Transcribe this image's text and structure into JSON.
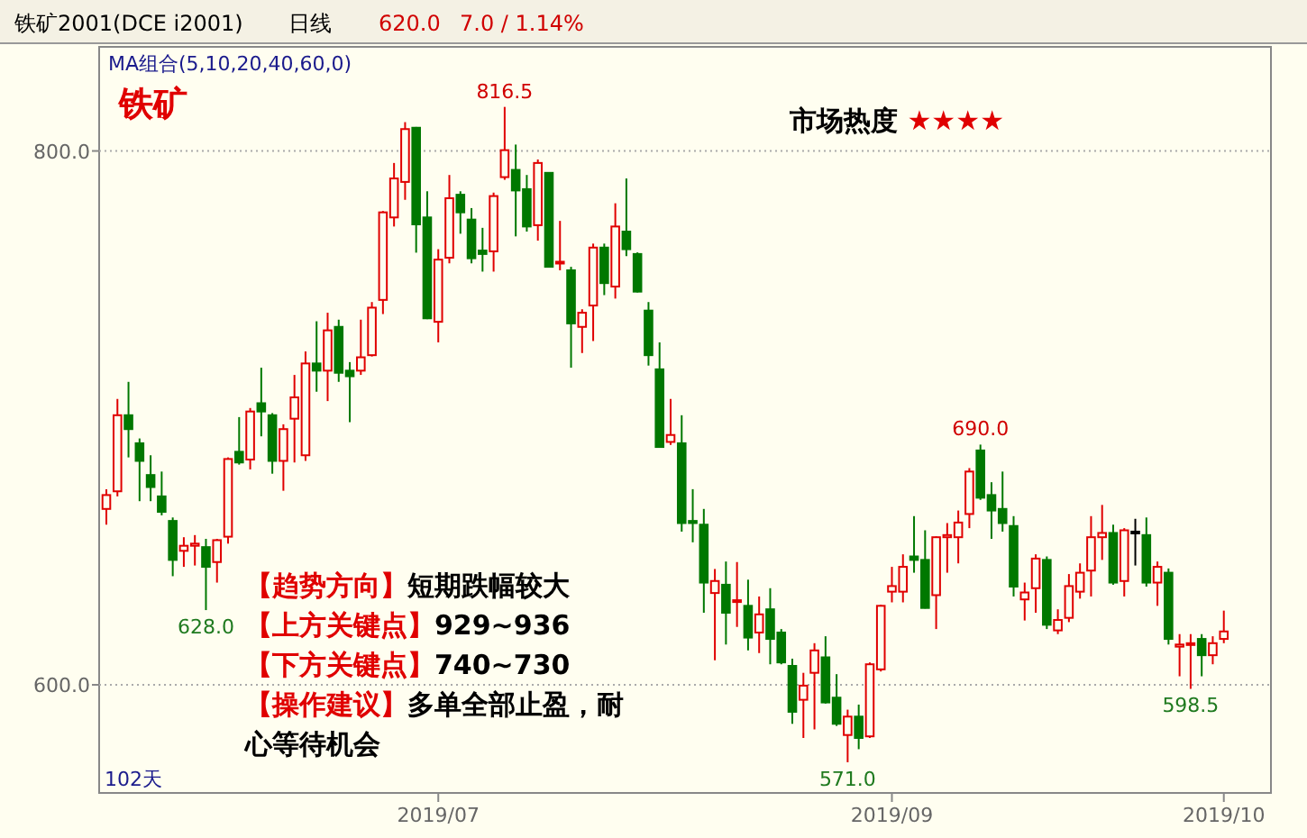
{
  "chart_data": {
    "type": "candlestick",
    "title": "铁矿2001(DCE i2001)",
    "subtitle": "日线",
    "categories": [
      null,
      null,
      null,
      null,
      null,
      null,
      null,
      null,
      null,
      null,
      null,
      null,
      null,
      null,
      null,
      null,
      null,
      null,
      null,
      null,
      null,
      null,
      null,
      null,
      null,
      null,
      null,
      null,
      null,
      null,
      "2019/07",
      null,
      null,
      null,
      null,
      null,
      null,
      null,
      null,
      null,
      null,
      null,
      null,
      null,
      null,
      null,
      null,
      null,
      null,
      null,
      null,
      null,
      null,
      null,
      null,
      null,
      null,
      null,
      null,
      null,
      null,
      null,
      null,
      null,
      null,
      null,
      null,
      null,
      null,
      null,
      null,
      "2019/09",
      null,
      null,
      null,
      null,
      null,
      null,
      null,
      null,
      null,
      null,
      null,
      null,
      null,
      null,
      null,
      null,
      null,
      null,
      null,
      null,
      null,
      null,
      null,
      null,
      null,
      null,
      null,
      null,
      null,
      "2019/10"
    ],
    "ohlc": [
      [
        665.9,
        673.3,
        660.0,
        671.1
      ],
      [
        672.5,
        707.1,
        670.6,
        701.0
      ],
      [
        701.0,
        713.5,
        685.2,
        695.8
      ],
      [
        690.5,
        692.3,
        668.8,
        683.9
      ],
      [
        678.6,
        686.0,
        668.8,
        674.1
      ],
      [
        670.6,
        679.9,
        663.5,
        664.8
      ],
      [
        661.4,
        662.7,
        640.7,
        646.8
      ],
      [
        650.2,
        655.3,
        644.2,
        652.1
      ],
      [
        652.1,
        656.1,
        644.7,
        652.9
      ],
      [
        651.6,
        654.7,
        628.0,
        644.2
      ],
      [
        646.0,
        654.7,
        638.3,
        654.2
      ],
      [
        655.5,
        685.2,
        652.9,
        684.6
      ],
      [
        687.3,
        700.3,
        682.5,
        683.3
      ],
      [
        684.4,
        703.7,
        680.7,
        702.4
      ],
      [
        705.5,
        718.8,
        693.1,
        702.4
      ],
      [
        701.0,
        701.8,
        679.1,
        683.9
      ],
      [
        683.9,
        697.6,
        672.7,
        695.8
      ],
      [
        699.7,
        716.1,
        683.3,
        707.7
      ],
      [
        686.0,
        724.9,
        683.9,
        720.4
      ],
      [
        720.4,
        736.2,
        709.8,
        717.7
      ],
      [
        717.7,
        739.4,
        706.3,
        732.8
      ],
      [
        734.1,
        736.8,
        713.5,
        716.9
      ],
      [
        717.7,
        720.9,
        698.4,
        715.6
      ],
      [
        717.7,
        736.8,
        716.1,
        722.7
      ],
      [
        723.5,
        743.4,
        723.0,
        741.3
      ],
      [
        744.2,
        777.5,
        738.9,
        777.0
      ],
      [
        775.1,
        795.5,
        771.7,
        789.7
      ],
      [
        788.4,
        810.8,
        781.7,
        808.2
      ],
      [
        808.7,
        809.0,
        761.9,
        772.5
      ],
      [
        775.1,
        784.9,
        737.0,
        737.3
      ],
      [
        736.0,
        763.2,
        728.3,
        759.3
      ],
      [
        760.0,
        791.0,
        757.9,
        782.3
      ],
      [
        783.6,
        784.9,
        769.0,
        777.0
      ],
      [
        774.3,
        778.6,
        757.9,
        759.8
      ],
      [
        762.7,
        771.2,
        754.8,
        761.4
      ],
      [
        762.4,
        784.4,
        754.8,
        783.1
      ],
      [
        790.2,
        816.5,
        789.2,
        800.3
      ],
      [
        792.9,
        802.4,
        768.0,
        785.2
      ],
      [
        785.7,
        791.0,
        769.8,
        771.7
      ],
      [
        772.2,
        796.8,
        766.4,
        795.5
      ],
      [
        791.8,
        791.8,
        756.6,
        756.6
      ],
      [
        757.9,
        773.8,
        755.3,
        758.5
      ],
      [
        755.3,
        756.6,
        718.8,
        735.4
      ],
      [
        734.1,
        740.7,
        724.3,
        739.4
      ],
      [
        742.1,
        765.3,
        728.8,
        763.8
      ],
      [
        763.8,
        765.3,
        746.0,
        750.5
      ],
      [
        749.2,
        780.4,
        744.7,
        771.7
      ],
      [
        769.8,
        789.7,
        760.6,
        763.2
      ],
      [
        761.4,
        762.0,
        747.0,
        747.3
      ],
      [
        740.2,
        743.4,
        719.6,
        723.5
      ],
      [
        718.2,
        728.3,
        689.0,
        689.1
      ],
      [
        691.0,
        707.1,
        689.9,
        693.6
      ],
      [
        690.5,
        701.0,
        657.4,
        660.6
      ],
      [
        661.4,
        673.3,
        653.4,
        660.6
      ],
      [
        660.0,
        665.9,
        627.0,
        638.3
      ],
      [
        634.4,
        643.4,
        609.2,
        638.9
      ],
      [
        637.5,
        646.2,
        615.1,
        627.0
      ],
      [
        631.2,
        646.0,
        621.7,
        631.7
      ],
      [
        629.6,
        639.4,
        612.9,
        617.7
      ],
      [
        619.6,
        633.1,
        611.9,
        626.4
      ],
      [
        628.3,
        636.2,
        607.7,
        617.2
      ],
      [
        619.6,
        620.9,
        607.7,
        608.4
      ],
      [
        607.1,
        609.8,
        585.4,
        589.9
      ],
      [
        594.4,
        604.5,
        580.1,
        599.7
      ],
      [
        604.5,
        615.6,
        583.3,
        612.9
      ],
      [
        610.3,
        618.2,
        593.0,
        593.4
      ],
      [
        595.2,
        604.0,
        584.6,
        585.4
      ],
      [
        581.2,
        590.7,
        571.0,
        588.1
      ],
      [
        588.1,
        592.6,
        575.9,
        580.1
      ],
      [
        580.7,
        608.4,
        580.1,
        607.7
      ],
      [
        605.8,
        630.0,
        605.0,
        629.6
      ],
      [
        634.9,
        644.2,
        630.9,
        637.0
      ],
      [
        634.9,
        648.9,
        630.9,
        644.2
      ],
      [
        648.1,
        663.2,
        642.0,
        646.8
      ],
      [
        646.8,
        657.9,
        628.6,
        628.8
      ],
      [
        633.6,
        655.6,
        620.9,
        655.3
      ],
      [
        655.3,
        660.6,
        642.0,
        656.1
      ],
      [
        655.3,
        665.3,
        645.5,
        660.8
      ],
      [
        664.0,
        681.2,
        658.7,
        679.9
      ],
      [
        687.8,
        690.0,
        669.3,
        670.1
      ],
      [
        671.1,
        675.9,
        654.7,
        665.3
      ],
      [
        665.9,
        679.9,
        657.4,
        660.6
      ],
      [
        659.5,
        663.2,
        633.1,
        636.8
      ],
      [
        632.0,
        638.3,
        624.1,
        634.6
      ],
      [
        636.2,
        648.9,
        627.0,
        647.3
      ],
      [
        646.8,
        648.1,
        620.9,
        622.5
      ],
      [
        620.4,
        628.3,
        619.0,
        624.3
      ],
      [
        625.1,
        641.5,
        623.5,
        637.0
      ],
      [
        634.9,
        645.5,
        632.3,
        642.0
      ],
      [
        642.8,
        663.2,
        633.1,
        655.3
      ],
      [
        655.3,
        667.4,
        646.8,
        656.9
      ],
      [
        656.9,
        660.0,
        637.5,
        638.3
      ],
      [
        638.9,
        658.7,
        633.1,
        657.9
      ],
      [
        657.4,
        662.2,
        644.7,
        657.4
      ],
      [
        656.1,
        662.7,
        636.8,
        638.3
      ],
      [
        638.3,
        646.2,
        629.6,
        644.2
      ],
      [
        642.0,
        643.6,
        615.1,
        617.2
      ],
      [
        614.3,
        619.0,
        603.2,
        615.1
      ],
      [
        615.1,
        619.0,
        598.5,
        615.6
      ],
      [
        617.2,
        619.0,
        603.2,
        611.1
      ],
      [
        611.1,
        618.2,
        607.7,
        615.6
      ],
      [
        617.2,
        627.8,
        615.6,
        620.0
      ]
    ],
    "ylim": [
      559.5,
      839
    ],
    "yticks": [
      {
        "value": 800,
        "label": "800.0"
      },
      {
        "value": 600,
        "label": "600.0"
      }
    ],
    "grid": "y",
    "annotations": [
      "620.0",
      "7.0 / 1.14%",
      "MA组合(5,10,20,40,60,0)",
      "铁矿",
      "市场热度 ★★★★",
      "【趋势方向】短期跌幅较大",
      "【上方关键点】929~936",
      "【下方关键点】740~730",
      "【操作建议】多单全部止盈，耐心等待机会",
      "102天",
      {
        "text": "816.5",
        "y": 816.5
      },
      {
        "text": "690.0",
        "y": 690.0
      },
      {
        "text": "628.0",
        "y": 628.0
      },
      {
        "text": "571.0",
        "y": 571.0
      },
      {
        "text": "598.5",
        "y": 598.5
      }
    ]
  }
}
